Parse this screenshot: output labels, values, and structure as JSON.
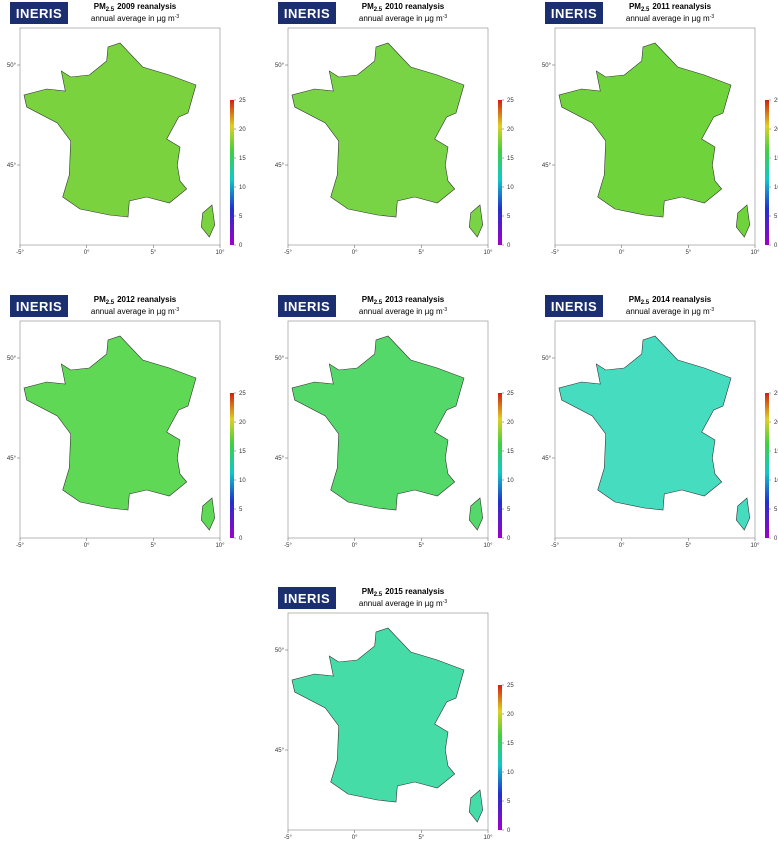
{
  "panels": [
    {
      "logo": "INERIS",
      "title_pm": "PM",
      "title_sub": "2.5",
      "title_rest": "2009 reanalysis",
      "subtitle": "annual average in µg m",
      "subtitle_sup": "-3",
      "map_color": "#7ad23f"
    },
    {
      "logo": "INERIS",
      "title_pm": "PM",
      "title_sub": "2.5",
      "title_rest": "2010 reanalysis",
      "subtitle": "annual average in µg m",
      "subtitle_sup": "-3",
      "map_color": "#78d444"
    },
    {
      "logo": "INERIS",
      "title_pm": "PM",
      "title_sub": "2.5",
      "title_rest": "2011 reanalysis",
      "subtitle": "annual average in µg m",
      "subtitle_sup": "-3",
      "map_color": "#6fd43c"
    },
    {
      "logo": "INERIS",
      "title_pm": "PM",
      "title_sub": "2.5",
      "title_rest": "2012 reanalysis",
      "subtitle": "annual average in µg m",
      "subtitle_sup": "-3",
      "map_color": "#5fd855"
    },
    {
      "logo": "INERIS",
      "title_pm": "PM",
      "title_sub": "2.5",
      "title_rest": "2013 reanalysis",
      "subtitle": "annual average in µg m",
      "subtitle_sup": "-3",
      "map_color": "#55d86a"
    },
    {
      "logo": "INERIS",
      "title_pm": "PM",
      "title_sub": "2.5",
      "title_rest": "2014 reanalysis",
      "subtitle": "annual average in µg m",
      "subtitle_sup": "-3",
      "map_color": "#45dcc0"
    },
    {
      "logo": "INERIS",
      "title_pm": "PM",
      "title_sub": "2.5",
      "title_rest": "2015 reanalysis",
      "subtitle": "annual average in µg m",
      "subtitle_sup": "-3",
      "map_color": "#45dca8"
    }
  ],
  "colorbar": {
    "lim": [
      0,
      25
    ],
    "ticks": [
      0,
      5,
      10,
      15,
      20,
      25
    ]
  },
  "lon_ticks": [
    {
      "value": -5,
      "label": "-5°"
    },
    {
      "value": 0,
      "label": "0°"
    },
    {
      "value": 5,
      "label": "5°"
    },
    {
      "value": 10,
      "label": "10°"
    }
  ],
  "lat_ticks": [
    {
      "value": 45,
      "label": "45°"
    },
    {
      "value": 50,
      "label": "50°"
    }
  ]
}
